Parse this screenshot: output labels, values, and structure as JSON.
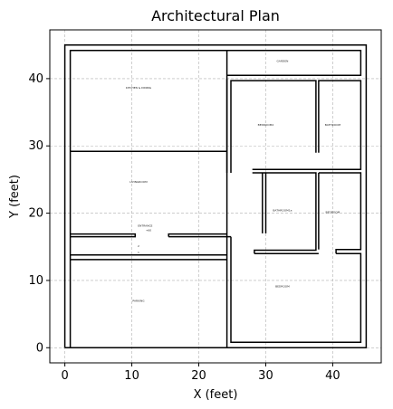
{
  "chart_data": {
    "type": "diagram",
    "title": "Architectural Plan",
    "xlabel": "X (feet)",
    "ylabel": "Y (feet)",
    "xlim": [
      -2.25,
      47.25
    ],
    "ylim": [
      -2.25,
      47.25
    ],
    "xticks": [
      0,
      10,
      20,
      30,
      40
    ],
    "yticks": [
      0,
      10,
      20,
      30,
      40
    ],
    "grid": true,
    "walls": [
      [
        [
          0,
          0
        ],
        [
          0,
          45
        ],
        [
          45,
          45
        ],
        [
          45,
          0
        ],
        [
          0,
          0
        ]
      ],
      [
        [
          0.8,
          0
        ],
        [
          0.8,
          44.2
        ],
        [
          24.2,
          44.2
        ],
        [
          24.2,
          0
        ]
      ],
      [
        [
          24.2,
          40.5
        ],
        [
          44.2,
          40.5
        ],
        [
          44.2,
          44.2
        ],
        [
          24.2,
          44.2
        ]
      ],
      [
        [
          24.2,
          26
        ],
        [
          24.2,
          40
        ]
      ],
      [
        [
          24.8,
          26
        ],
        [
          24.8,
          39.7
        ],
        [
          37.5,
          39.7
        ],
        [
          37.5,
          29
        ]
      ],
      [
        [
          37.9,
          29
        ],
        [
          37.9,
          39.7
        ],
        [
          44.2,
          39.7
        ],
        [
          44.2,
          26.5
        ],
        [
          28,
          26.5
        ]
      ],
      [
        [
          28,
          26
        ],
        [
          37.5,
          26
        ],
        [
          37.5,
          14.5
        ],
        [
          28.3,
          14.5
        ],
        [
          28.3,
          14
        ]
      ],
      [
        [
          29.5,
          26
        ],
        [
          29.5,
          17
        ]
      ],
      [
        [
          30,
          17
        ],
        [
          30,
          26
        ]
      ],
      [
        [
          37.9,
          26
        ],
        [
          44.2,
          26
        ],
        [
          44.2,
          14.6
        ],
        [
          40.5,
          14.6
        ],
        [
          40.5,
          14
        ]
      ],
      [
        [
          37.9,
          26
        ],
        [
          37.9,
          14.6
        ]
      ],
      [
        [
          28.3,
          14
        ],
        [
          37.9,
          14
        ]
      ],
      [
        [
          40.5,
          14
        ],
        [
          44.2,
          14
        ],
        [
          44.2,
          0.8
        ],
        [
          24.8,
          0.8
        ],
        [
          24.8,
          16.5
        ]
      ],
      [
        [
          15.5,
          16.5
        ],
        [
          24.8,
          16.5
        ]
      ],
      [
        [
          15.5,
          16.5
        ],
        [
          15.5,
          16.9
        ],
        [
          24.2,
          16.9
        ]
      ],
      [
        [
          0.8,
          29.2
        ],
        [
          24.2,
          29.2
        ]
      ],
      [
        [
          0.8,
          16.9
        ],
        [
          10.5,
          16.9
        ],
        [
          10.5,
          16.5
        ],
        [
          0.8,
          16.5
        ]
      ],
      [
        [
          0.8,
          13.8
        ],
        [
          24.2,
          13.8
        ]
      ],
      [
        [
          0.8,
          13.1
        ],
        [
          24.2,
          13.1
        ]
      ]
    ],
    "labels": [
      {
        "text": "GARDEN",
        "x": 32.5,
        "y": 42.5
      },
      {
        "text": "KITCHEN & DINING",
        "x": 11,
        "y": 38.5
      },
      {
        "text": "BEDROOM2",
        "x": 30,
        "y": 33
      },
      {
        "text": "BATHROOM",
        "x": 40,
        "y": 33
      },
      {
        "text": "LIVINGROOM",
        "x": 11,
        "y": 24.5
      },
      {
        "text": "BATHROOM1a",
        "x": 32.5,
        "y": 20.3
      },
      {
        "text": "BEDROOM",
        "x": 40,
        "y": 20
      },
      {
        "text": "ENTRANCE",
        "x": 12,
        "y": 18
      },
      {
        "text": "+60",
        "x": 12.5,
        "y": 17.3
      },
      {
        "text": "2",
        "x": 11,
        "y": 15
      },
      {
        "text": "1",
        "x": 11,
        "y": 14
      },
      {
        "text": "BEDROOM",
        "x": 32.5,
        "y": 9
      },
      {
        "text": "PARKING",
        "x": 11,
        "y": 6.8
      }
    ]
  }
}
